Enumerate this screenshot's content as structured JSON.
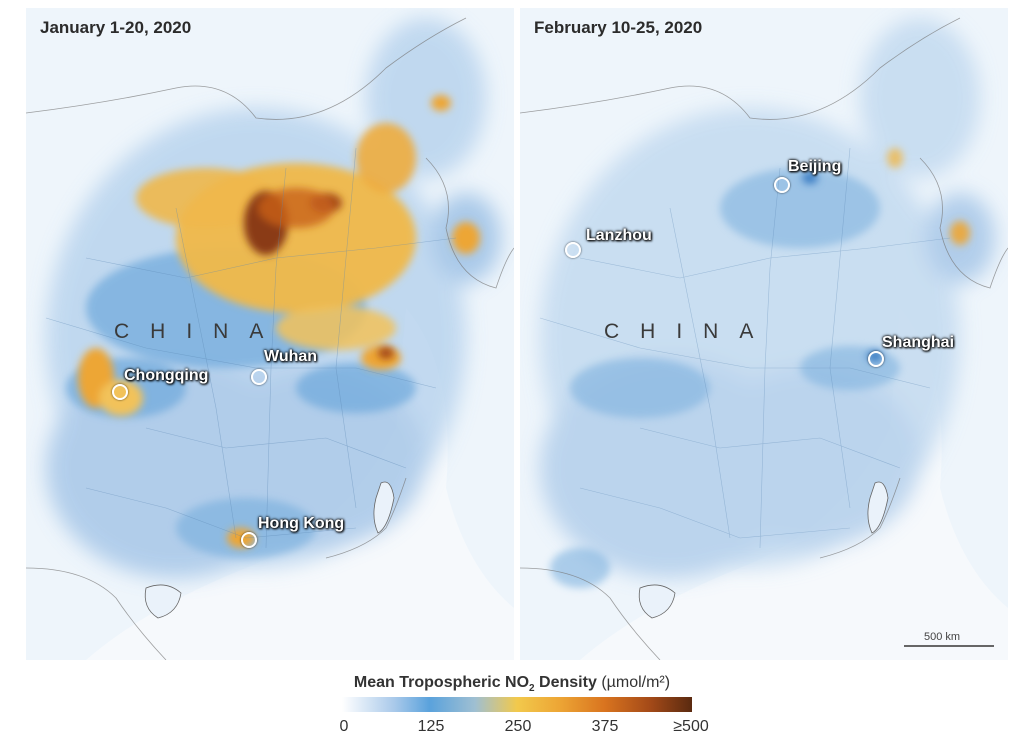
{
  "panels": {
    "left": {
      "title": "January 1-20, 2020",
      "country_label": "CHINA",
      "cities": [
        "Chongqing",
        "Wuhan",
        "Hong Kong"
      ]
    },
    "right": {
      "title": "February 10-25, 2020",
      "country_label": "CHINA",
      "cities": [
        "Beijing",
        "Lanzhou",
        "Shanghai"
      ],
      "scale_label": "500 km"
    }
  },
  "legend": {
    "title_main": "Mean Tropospheric NO",
    "title_sub": "2",
    "title_rest": " Density",
    "unit": "(µmol/m²)",
    "ticks": [
      "0",
      "125",
      "250",
      "375",
      "≥500"
    ],
    "colors": [
      "#ffffff",
      "#5aa2dc",
      "#f2c94c",
      "#d9741f",
      "#5a2a10"
    ]
  }
}
